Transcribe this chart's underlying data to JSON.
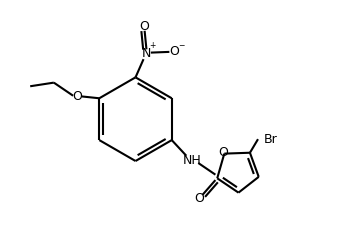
{
  "bg_color": "#ffffff",
  "bond_color": "#000000",
  "text_color": "#000000",
  "line_width": 1.5,
  "font_size": 9,
  "fig_width": 3.62,
  "fig_height": 2.42,
  "dpi": 100,
  "xlim": [
    0.0,
    9.5
  ],
  "ylim": [
    0.5,
    7.0
  ]
}
